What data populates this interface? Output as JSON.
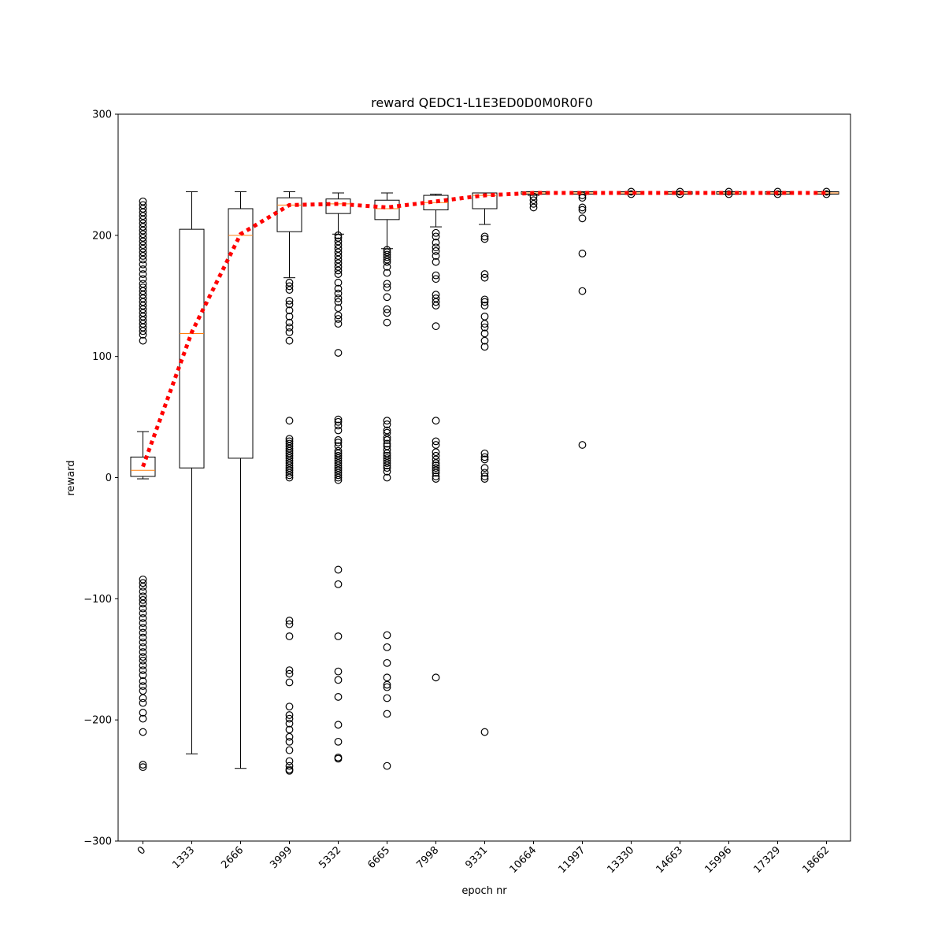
{
  "chart_data": {
    "type": "box",
    "title": "reward QEDC1-L1E3ED0D0M0R0F0",
    "xlabel": "epoch nr",
    "ylabel": "reward",
    "ylim": [
      -300,
      300
    ],
    "yticks": [
      -300,
      -200,
      -100,
      0,
      100,
      200,
      300
    ],
    "ytick_labels": [
      "−300",
      "−200",
      "−100",
      "0",
      "100",
      "200",
      "300"
    ],
    "categories": [
      "0",
      "1333",
      "2666",
      "3999",
      "5332",
      "6665",
      "7998",
      "9331",
      "10664",
      "11997",
      "13330",
      "14663",
      "15996",
      "17329",
      "18662"
    ],
    "colors": {
      "box": "#000000",
      "median": "#ff7f0e",
      "mean_line": "#ff0000"
    },
    "boxes": [
      {
        "q1": 1,
        "median": 6,
        "q3": 17,
        "whisker_low": -1,
        "whisker_high": 38,
        "outliers": [
          228,
          225,
          222,
          219,
          216,
          213,
          210,
          207,
          204,
          201,
          198,
          195,
          192,
          189,
          186,
          183,
          180,
          176,
          172,
          168,
          164,
          160,
          157,
          154,
          151,
          148,
          145,
          142,
          139,
          136,
          133,
          130,
          127,
          124,
          121,
          118,
          113,
          -84,
          -87,
          -90,
          -94,
          -98,
          -101,
          -104,
          -108,
          -112,
          -116,
          -120,
          -124,
          -128,
          -132,
          -136,
          -140,
          -144,
          -148,
          -151,
          -155,
          -159,
          -163,
          -168,
          -172,
          -176,
          -182,
          -186,
          -194,
          -199,
          -210,
          -237,
          -239
        ]
      },
      {
        "q1": 8,
        "median": 119,
        "q3": 205,
        "whisker_low": -228,
        "whisker_high": 236,
        "outliers": []
      },
      {
        "q1": 16,
        "median": 200,
        "q3": 222,
        "whisker_low": -240,
        "whisker_high": 236,
        "outliers": []
      },
      {
        "q1": 203,
        "median": 225,
        "q3": 231,
        "whisker_low": 165,
        "whisker_high": 236,
        "outliers": [
          161,
          158,
          155,
          146,
          143,
          138,
          133,
          128,
          124,
          120,
          113,
          47,
          32,
          30,
          28,
          26,
          24,
          22,
          20,
          18,
          16,
          14,
          12,
          10,
          8,
          6,
          4,
          2,
          0,
          -118,
          -121,
          -131,
          -159,
          -162,
          -169,
          -189,
          -196,
          -199,
          -203,
          -208,
          -214,
          -218,
          -225,
          -234,
          -238,
          -241,
          -242
        ]
      },
      {
        "q1": 218,
        "median": 226,
        "q3": 230,
        "whisker_low": 201,
        "whisker_high": 235,
        "outliers": [
          200,
          198,
          195,
          192,
          189,
          186,
          183,
          180,
          177,
          174,
          171,
          168,
          161,
          156,
          152,
          148,
          145,
          140,
          134,
          131,
          127,
          103,
          48,
          46,
          43,
          39,
          31,
          29,
          26,
          22,
          20,
          18,
          16,
          14,
          12,
          10,
          8,
          6,
          4,
          2,
          0,
          -2,
          -76,
          -88,
          -131,
          -160,
          -167,
          -181,
          -204,
          -218,
          -231,
          -232
        ]
      },
      {
        "q1": 213,
        "median": 222,
        "q3": 229,
        "whisker_low": 189,
        "whisker_high": 235,
        "outliers": [
          188,
          186,
          184,
          182,
          180,
          178,
          174,
          169,
          160,
          157,
          149,
          139,
          136,
          128,
          47,
          44,
          39,
          37,
          33,
          31,
          28,
          26,
          23,
          20,
          18,
          16,
          14,
          12,
          10,
          8,
          5,
          0,
          -130,
          -140,
          -153,
          -165,
          -171,
          -173,
          -182,
          -195,
          -238
        ]
      },
      {
        "q1": 221,
        "median": 227,
        "q3": 233,
        "whisker_low": 207,
        "whisker_high": 234,
        "outliers": [
          202,
          199,
          194,
          190,
          187,
          183,
          178,
          167,
          164,
          151,
          148,
          145,
          142,
          125,
          47,
          30,
          27,
          21,
          18,
          15,
          12,
          10,
          8,
          6,
          4,
          1,
          -1,
          -165
        ]
      },
      {
        "q1": 222,
        "median": 233,
        "q3": 235,
        "whisker_low": 209,
        "whisker_high": 235,
        "outliers": [
          199,
          197,
          168,
          165,
          147,
          145,
          142,
          133,
          127,
          124,
          119,
          113,
          108,
          20,
          17,
          15,
          8,
          4,
          1,
          -1,
          -210
        ]
      },
      {
        "q1": 234,
        "median": 235,
        "q3": 236,
        "whisker_low": 233,
        "whisker_high": 236,
        "outliers": [
          232,
          229,
          226,
          223
        ]
      },
      {
        "q1": 234,
        "median": 235,
        "q3": 236,
        "whisker_low": 234,
        "whisker_high": 236,
        "outliers": [
          233,
          231,
          223,
          221,
          214,
          185,
          154,
          27
        ]
      },
      {
        "q1": 234,
        "median": 235,
        "q3": 236,
        "whisker_low": 234,
        "whisker_high": 236,
        "outliers": [
          234,
          236
        ]
      },
      {
        "q1": 234,
        "median": 235,
        "q3": 236,
        "whisker_low": 234,
        "whisker_high": 236,
        "outliers": [
          234,
          236
        ]
      },
      {
        "q1": 234,
        "median": 235,
        "q3": 236,
        "whisker_low": 234,
        "whisker_high": 236,
        "outliers": [
          234,
          236
        ]
      },
      {
        "q1": 234,
        "median": 235,
        "q3": 236,
        "whisker_low": 234,
        "whisker_high": 236,
        "outliers": [
          234,
          236
        ]
      },
      {
        "q1": 234,
        "median": 235,
        "q3": 236,
        "whisker_low": 234,
        "whisker_high": 236,
        "outliers": [
          234,
          236
        ]
      }
    ],
    "mean_line": {
      "style": "dotted",
      "values": [
        9,
        120,
        201,
        225,
        226,
        223,
        228,
        233,
        235,
        235,
        235,
        235,
        235,
        235,
        235
      ]
    },
    "grid": false,
    "legend": "none"
  }
}
